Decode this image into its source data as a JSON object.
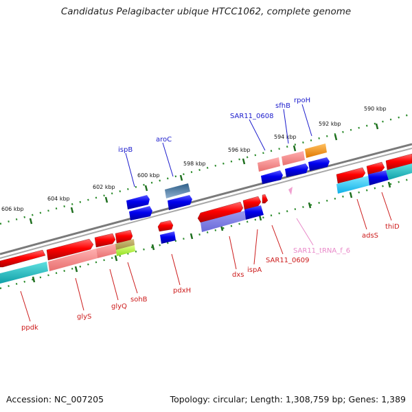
{
  "title": "Candidatus Pelagibacter ubique HTCC1062, complete genome",
  "footer": {
    "accession": "Accession: NC_007205",
    "summary": "Topology: circular; Length: 1,308,759 bp; Genes: 1,389"
  },
  "colors": {
    "backbone": "#8a8a8a",
    "ruler": "#2a8a2a",
    "label_above": "#1a1acc",
    "label_below": "#cc1a1a",
    "label_trna": "#e888c8"
  },
  "ticks": [
    "606 kbp",
    "604 kbp",
    "602 kbp",
    "600 kbp",
    "598 kbp",
    "596 kbp",
    "594 kbp",
    "592 kbp",
    "590 kbp"
  ],
  "genes_above": [
    "ispB",
    "aroC",
    "SAR11_0608",
    "sfhB",
    "rpoH"
  ],
  "genes_below": [
    "ppdk",
    "glyS",
    "glyQ",
    "sohB",
    "pdxH",
    "dxs",
    "ispA",
    "SAR11_0609",
    "SAR11_tRNA_f_6",
    "adsS",
    "thiD"
  ]
}
